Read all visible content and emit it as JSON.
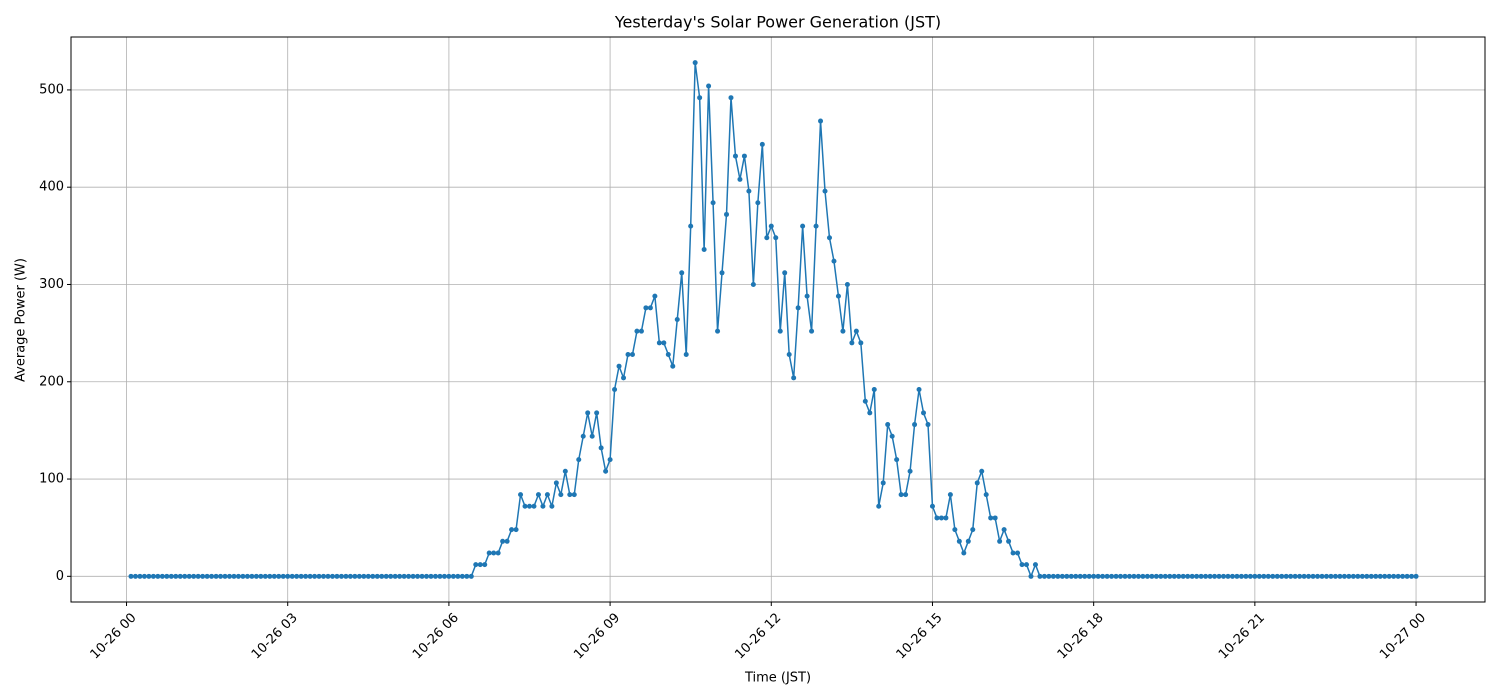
{
  "chart_data": {
    "type": "line",
    "title": "Yesterday's Solar Power Generation (JST)",
    "xlabel": "Time (JST)",
    "ylabel": "Average Power (W)",
    "x": [
      5,
      10,
      15,
      20,
      25,
      30,
      35,
      40,
      45,
      50,
      55,
      60,
      65,
      70,
      75,
      80,
      85,
      90,
      95,
      100,
      105,
      110,
      115,
      120,
      125,
      130,
      135,
      140,
      145,
      150,
      155,
      160,
      165,
      170,
      175,
      180,
      185,
      190,
      195,
      200,
      205,
      210,
      215,
      220,
      225,
      230,
      235,
      240,
      245,
      250,
      255,
      260,
      265,
      270,
      275,
      280,
      285,
      290,
      295,
      300,
      305,
      310,
      315,
      320,
      325,
      330,
      335,
      340,
      345,
      350,
      355,
      360,
      365,
      370,
      375,
      380,
      385,
      390,
      395,
      400,
      405,
      410,
      415,
      420,
      425,
      430,
      435,
      440,
      445,
      450,
      455,
      460,
      465,
      470,
      475,
      480,
      485,
      490,
      495,
      500,
      505,
      510,
      515,
      520,
      525,
      530,
      535,
      540,
      545,
      550,
      555,
      560,
      565,
      570,
      575,
      580,
      585,
      590,
      595,
      600,
      605,
      610,
      615,
      620,
      625,
      630,
      635,
      640,
      645,
      650,
      655,
      660,
      665,
      670,
      675,
      680,
      685,
      690,
      695,
      700,
      705,
      710,
      715,
      720,
      725,
      730,
      735,
      740,
      745,
      750,
      755,
      760,
      765,
      770,
      775,
      780,
      785,
      790,
      795,
      800,
      805,
      810,
      815,
      820,
      825,
      830,
      835,
      840,
      845,
      850,
      855,
      860,
      865,
      870,
      875,
      880,
      885,
      890,
      895,
      900,
      905,
      910,
      915,
      920,
      925,
      930,
      935,
      940,
      945,
      950,
      955,
      960,
      965,
      970,
      975,
      980,
      985,
      990,
      995,
      1000,
      1005,
      1010,
      1015,
      1020,
      1025,
      1030,
      1035,
      1040,
      1045,
      1050,
      1055,
      1060,
      1065,
      1070,
      1075,
      1080,
      1085,
      1090,
      1095,
      1100,
      1105,
      1110,
      1115,
      1120,
      1125,
      1130,
      1135,
      1140,
      1145,
      1150,
      1155,
      1160,
      1165,
      1170,
      1175,
      1180,
      1185,
      1190,
      1195,
      1200,
      1205,
      1210,
      1215,
      1220,
      1225,
      1230,
      1235,
      1240,
      1245,
      1250,
      1255,
      1260,
      1265,
      1270,
      1275,
      1280,
      1285,
      1290,
      1295,
      1300,
      1305,
      1310,
      1315,
      1320,
      1325,
      1330,
      1335,
      1340,
      1345,
      1350,
      1355,
      1360,
      1365,
      1370,
      1375,
      1380,
      1385,
      1390,
      1395,
      1400,
      1405,
      1410,
      1415,
      1420,
      1425,
      1430,
      1435,
      1440
    ],
    "series": [
      {
        "color": "#1f77b4",
        "values": [
          0,
          0,
          0,
          0,
          0,
          0,
          0,
          0,
          0,
          0,
          0,
          0,
          0,
          0,
          0,
          0,
          0,
          0,
          0,
          0,
          0,
          0,
          0,
          0,
          0,
          0,
          0,
          0,
          0,
          0,
          0,
          0,
          0,
          0,
          0,
          0,
          0,
          0,
          0,
          0,
          0,
          0,
          0,
          0,
          0,
          0,
          0,
          0,
          0,
          0,
          0,
          0,
          0,
          0,
          0,
          0,
          0,
          0,
          0,
          0,
          0,
          0,
          0,
          0,
          0,
          0,
          0,
          0,
          0,
          0,
          0,
          0,
          0,
          0,
          0,
          0,
          0,
          12,
          12,
          12,
          24,
          24,
          24,
          36,
          36,
          48,
          48,
          84,
          72,
          72,
          72,
          84,
          72,
          84,
          72,
          96,
          84,
          108,
          84,
          84,
          120,
          144,
          168,
          144,
          168,
          132,
          108,
          120,
          192,
          216,
          204,
          228,
          228,
          252,
          252,
          276,
          276,
          288,
          240,
          240,
          228,
          216,
          264,
          312,
          228,
          360,
          528,
          492,
          336,
          504,
          384,
          252,
          312,
          372,
          492,
          432,
          408,
          432,
          396,
          300,
          384,
          444,
          348,
          360,
          348,
          252,
          312,
          228,
          204,
          276,
          360,
          288,
          252,
          360,
          468,
          396,
          348,
          324,
          288,
          252,
          300,
          240,
          252,
          240,
          180,
          168,
          192,
          72,
          96,
          156,
          144,
          120,
          84,
          84,
          108,
          156,
          192,
          168,
          156,
          72,
          60,
          60,
          60,
          84,
          48,
          36,
          24,
          36,
          48,
          96,
          108,
          84,
          60,
          60,
          36,
          48,
          36,
          24,
          24,
          12,
          12,
          0,
          12,
          0,
          0,
          0,
          0,
          0,
          0,
          0,
          0,
          0,
          0,
          0,
          0,
          0,
          0,
          0,
          0,
          0,
          0,
          0,
          0,
          0,
          0,
          0,
          0,
          0,
          0,
          0,
          0,
          0,
          0,
          0,
          0,
          0,
          0,
          0,
          0,
          0,
          0,
          0,
          0,
          0,
          0,
          0,
          0,
          0,
          0,
          0,
          0,
          0,
          0,
          0,
          0,
          0,
          0,
          0,
          0,
          0,
          0,
          0,
          0,
          0,
          0,
          0,
          0,
          0,
          0,
          0,
          0,
          0,
          0,
          0,
          0,
          0,
          0,
          0,
          0,
          0,
          0,
          0,
          0,
          0,
          0,
          0,
          0,
          0
        ]
      }
    ],
    "xlim": [
      -62,
      1517
    ],
    "xticks": [
      {
        "value": 0,
        "label": "10-26 00"
      },
      {
        "value": 180,
        "label": "10-26 03"
      },
      {
        "value": 360,
        "label": "10-26 06"
      },
      {
        "value": 540,
        "label": "10-26 09"
      },
      {
        "value": 720,
        "label": "10-26 12"
      },
      {
        "value": 900,
        "label": "10-26 15"
      },
      {
        "value": 1080,
        "label": "10-26 18"
      },
      {
        "value": 1260,
        "label": "10-26 21"
      },
      {
        "value": 1440,
        "label": "10-27 00"
      }
    ],
    "ylim": [
      -26.4,
      554.4
    ],
    "yticks": [
      0,
      100,
      200,
      300,
      400,
      500
    ],
    "grid": true
  }
}
